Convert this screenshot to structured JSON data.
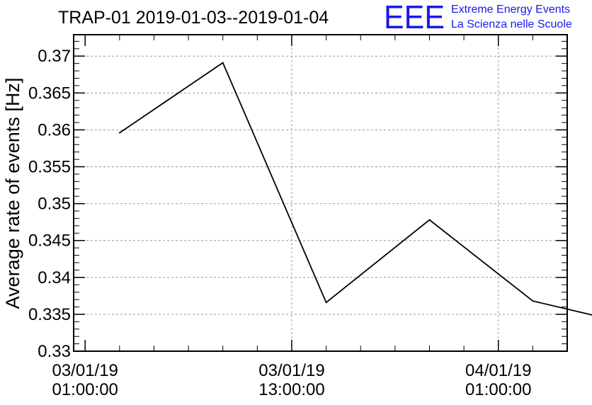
{
  "chart_data": {
    "type": "line",
    "title": "TRAP-01 2019-01-03--2019-01-04",
    "ylabel": "Average rate of events [Hz]",
    "xlabel": "",
    "ylim": [
      0.33,
      0.3729
    ],
    "xlim": [
      "2019-01-03 00:20:00",
      "2019-01-04 05:00:00"
    ],
    "x_tick_labels": [
      {
        "date": "03/01/19",
        "time": "01:00:00",
        "at": "2019-01-03 01:00:00"
      },
      {
        "date": "03/01/19",
        "time": "13:00:00",
        "at": "2019-01-03 13:00:00"
      },
      {
        "date": "04/01/19",
        "time": "01:00:00",
        "at": "2019-01-04 01:00:00"
      }
    ],
    "y_ticks": [
      "0.33",
      "0.335",
      "0.34",
      "0.345",
      "0.35",
      "0.355",
      "0.36",
      "0.365",
      "0.37"
    ],
    "grid": true,
    "series": [
      {
        "x": [
          "2019-01-03 03:00:00",
          "2019-01-03 09:00:00",
          "2019-01-03 15:00:00",
          "2019-01-03 21:00:00",
          "2019-01-04 03:00:00",
          "2019-01-04 09:00:00"
        ],
        "values": [
          0.3596,
          0.3691,
          0.3366,
          0.3478,
          0.3368,
          0.3335
        ],
        "color": "#000000"
      }
    ]
  },
  "logo": {
    "mark": "EEE",
    "line1": "Extreme Energy Events",
    "line2": "La Scienza nelle Scuole",
    "color": "#1a1ae6"
  }
}
